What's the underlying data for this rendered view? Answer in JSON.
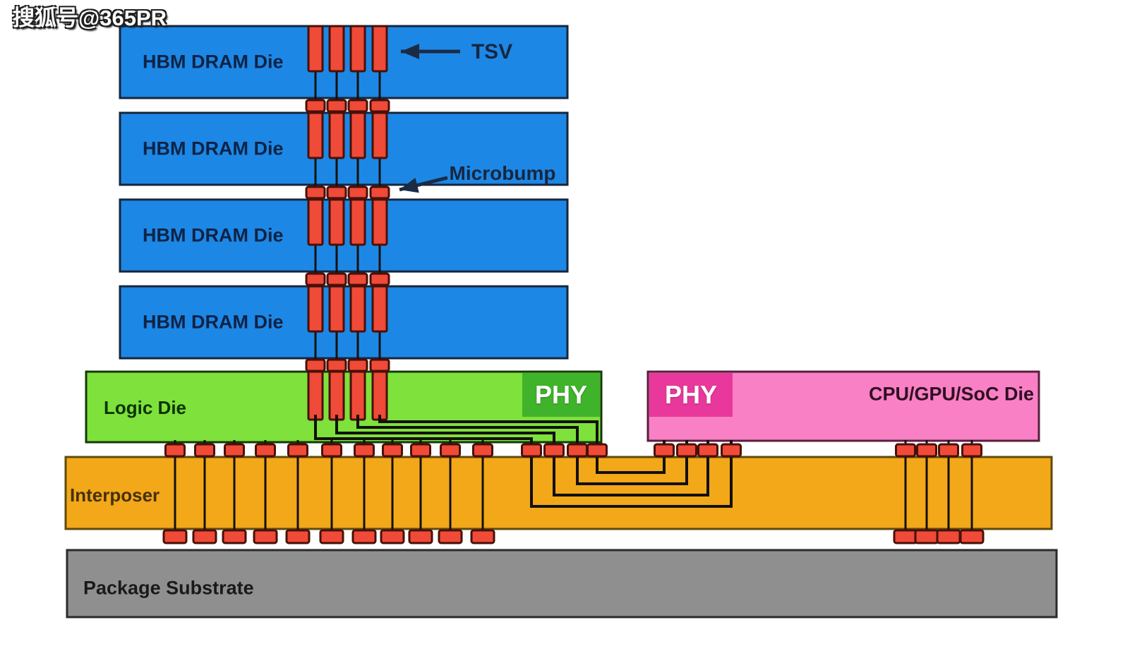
{
  "watermark": "搜狐号@365PR",
  "diagram": {
    "dram_dies": [
      {
        "label": "HBM DRAM Die"
      },
      {
        "label": "HBM DRAM Die"
      },
      {
        "label": "HBM DRAM Die"
      },
      {
        "label": "HBM DRAM Die"
      }
    ],
    "logic_die": {
      "label": "Logic Die",
      "phy_label": "PHY"
    },
    "cpu_die": {
      "label": "CPU/GPU/SoC Die",
      "phy_label": "PHY"
    },
    "interposer": {
      "label": "Interposer"
    },
    "package_substrate": {
      "label": "Package Substrate"
    },
    "annotations": {
      "tsv": "TSV",
      "microbump": "Microbump"
    }
  },
  "colors": {
    "dram_die_blue": "#1d87e6",
    "die_border": "#16263b",
    "tsv_red": "#f04a38",
    "bump_border": "#471008",
    "logic_die_green": "#7ee13c",
    "logic_phy_green": "#3fb32a",
    "cpu_die_pink": "#f980c4",
    "cpu_phy_magenta": "#e8389b",
    "interposer_orange": "#f3a81a",
    "substrate_gray": "#8f8f8f",
    "wire_black": "#13100c"
  }
}
